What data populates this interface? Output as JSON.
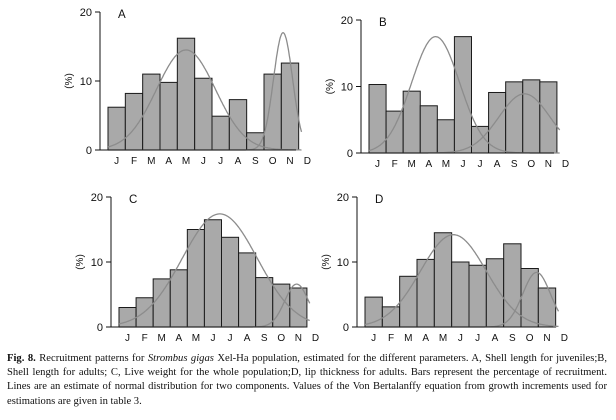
{
  "chart_data": [
    {
      "type": "bar",
      "panel_label": "A",
      "ylabel": "(%)",
      "ylim": [
        0,
        20
      ],
      "yticks": [
        "0",
        "10",
        "20"
      ],
      "categories": [
        "J",
        "F",
        "M",
        "A",
        "M",
        "J",
        "J",
        "A",
        "S",
        "O",
        "N",
        "D"
      ],
      "values": [
        6.2,
        8.2,
        11.0,
        9.8,
        16.2,
        10.4,
        4.9,
        7.3,
        2.5,
        11.0,
        12.6,
        null
      ],
      "curves": [
        {
          "mean": 4.0,
          "sd": 1.7,
          "peak": 14.5
        },
        {
          "mean": 9.6,
          "sd": 0.55,
          "peak": 17.0
        }
      ]
    },
    {
      "type": "bar",
      "panel_label": "B",
      "ylabel": "(%)",
      "ylim": [
        0,
        20
      ],
      "yticks": [
        "0",
        "10",
        "20"
      ],
      "categories": [
        "J",
        "F",
        "M",
        "A",
        "M",
        "J",
        "J",
        "A",
        "S",
        "O",
        "N",
        "D"
      ],
      "values": [
        10.3,
        6.3,
        9.3,
        7.1,
        5.0,
        17.5,
        4.0,
        9.1,
        10.7,
        11.0,
        10.7,
        null
      ],
      "curves": [
        {
          "mean": 3.4,
          "sd": 1.4,
          "peak": 17.5
        },
        {
          "mean": 8.6,
          "sd": 1.5,
          "peak": 8.9
        }
      ]
    },
    {
      "type": "bar",
      "panel_label": "C",
      "ylabel": "(%)",
      "ylim": [
        0,
        20
      ],
      "yticks": [
        "0",
        "10",
        "20"
      ],
      "categories": [
        "J",
        "F",
        "M",
        "A",
        "M",
        "J",
        "J",
        "A",
        "S",
        "O",
        "N",
        "D"
      ],
      "values": [
        3.0,
        4.5,
        7.4,
        8.8,
        15.0,
        16.5,
        13.8,
        11.4,
        7.6,
        6.6,
        6.0,
        null
      ],
      "curves": [
        {
          "mean": 5.4,
          "sd": 2.2,
          "peak": 17.4
        },
        {
          "mean": 9.9,
          "sd": 0.7,
          "peak": 6.6
        }
      ]
    },
    {
      "type": "bar",
      "panel_label": "D",
      "ylabel": "(%)",
      "ylim": [
        0,
        20
      ],
      "yticks": [
        "0",
        "10",
        "20"
      ],
      "categories": [
        "J",
        "F",
        "M",
        "A",
        "M",
        "J",
        "J",
        "A",
        "S",
        "O",
        "N",
        "D"
      ],
      "values": [
        4.6,
        3.1,
        7.8,
        10.4,
        14.5,
        10.0,
        9.5,
        10.5,
        12.8,
        9.0,
        6.0,
        null
      ],
      "curves": [
        {
          "mean": 4.6,
          "sd": 1.9,
          "peak": 14.2
        },
        {
          "mean": 9.4,
          "sd": 0.8,
          "peak": 8.4
        }
      ]
    }
  ],
  "caption": {
    "fig": "Fig. 8.",
    "text1": " Recruitment patterns for ",
    "species": "Strombus gigas",
    "text2": " Xel-Ha population, estimated for the different parameters. A, Shell length for juveniles;B, Shell length for adults; C, Live weight for the whole population;D, lip thickness for adults. Bars represent the percentage of recruitment. Lines are an estimate of normal distribution for two components. Values of the Von Bertalanffy equation from growth increments used for estimations are given in table 3."
  },
  "colors": {
    "bar_fill": "#a9a9a9",
    "bar_stroke": "#1a1a1a",
    "curve": "#8c8c8c",
    "axis": "#111111"
  }
}
